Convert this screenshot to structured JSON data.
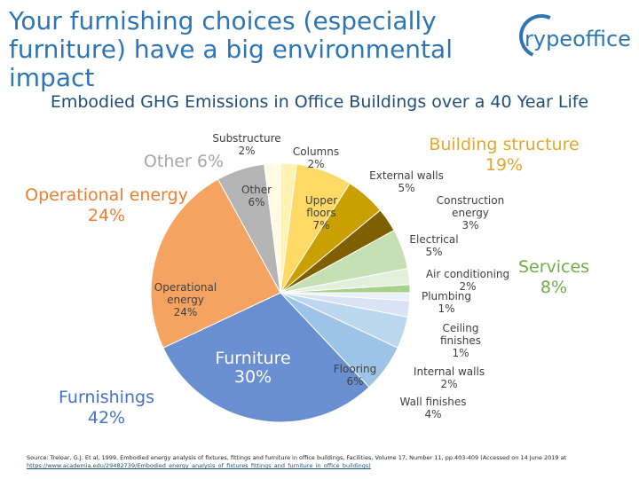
{
  "title": "Your furnishing choices (especially furniture) have a big environmental impact",
  "logo": {
    "rype": "rype",
    "office": "office"
  },
  "source": {
    "text": "Source: Treloar, G.J. Et al, 1999, Embodied energy analysis of fixtures, fittings and furniture in office buildings, Facilities, Volume 17, Number 11, pp.403-409 (Accessed on 14 June 2019 at",
    "link": "https://www.academia.edu/29482739/Embodied_energy_analysis_of_fixtures_fittings_and_furniture_in_office_buildings)"
  },
  "colors": {
    "title": "#2e75b6",
    "group_structure": "#e1a82f",
    "group_services": "#70ad47",
    "group_furnishings": "#4472c4",
    "group_operational": "#ed7d31",
    "group_other": "#a6a6a6"
  },
  "chart_data": {
    "type": "pie",
    "title": "Embodied GHG Emissions in Office Buildings over a 40 Year Life",
    "slices": [
      {
        "label": "Columns",
        "value_label": "2%",
        "value": 2,
        "color": "#fff2b3"
      },
      {
        "label": "Upper floors",
        "value_label": "7%",
        "value": 7,
        "color": "#ffd966"
      },
      {
        "label": "External walls",
        "value_label": "5%",
        "value": 5,
        "color": "#c9a000"
      },
      {
        "label": "Construction energy",
        "value_label": "3%",
        "value": 3,
        "color": "#7f6000"
      },
      {
        "label": "Electrical",
        "value_label": "5%",
        "value": 5,
        "color": "#c5e0b4"
      },
      {
        "label": "Air conditioning",
        "value_label": "2%",
        "value": 2,
        "color": "#e2efda"
      },
      {
        "label": "Plumbing",
        "value_label": "1%",
        "value": 1,
        "color": "#a9d18e"
      },
      {
        "label": "Ceiling finishes",
        "value_label": "1%",
        "value": 1,
        "color": "#e9f1fb"
      },
      {
        "label": "Internal walls",
        "value_label": "2%",
        "value": 2,
        "color": "#dae3f3"
      },
      {
        "label": "Wall finishes",
        "value_label": "4%",
        "value": 4,
        "color": "#bdd7ee"
      },
      {
        "label": "Flooring",
        "value_label": "6%",
        "value": 6,
        "color": "#9dc3e6"
      },
      {
        "label": "Furniture",
        "value_label": "30%",
        "value": 30,
        "color": "#6a8fd1"
      },
      {
        "label": "Operational energy",
        "value_label": "24%",
        "value": 24,
        "color": "#f4a460"
      },
      {
        "label": "Other",
        "value_label": "6%",
        "value": 6,
        "color": "#b4b4b4"
      },
      {
        "label": "Substructure",
        "value_label": "2%",
        "value": 2,
        "color": "#fffbe5"
      }
    ],
    "groups": [
      {
        "label": "Building structure",
        "value_label": "19%"
      },
      {
        "label": "Services",
        "value_label": "8%"
      },
      {
        "label": "Furnishings",
        "value_label": "42%"
      },
      {
        "label": "Operational energy",
        "value_label": "24%"
      },
      {
        "label": "Other",
        "value_label": "6%"
      }
    ],
    "slice_labels": [
      {
        "label": "Substructure",
        "value": "2%"
      },
      {
        "label": "Columns",
        "value": "2%"
      },
      {
        "label": "External walls",
        "value": "5%"
      },
      {
        "label": "Construction energy",
        "value": "3%"
      },
      {
        "label": "Upper floors",
        "value": "7%"
      },
      {
        "label": "Other",
        "value": "6%"
      },
      {
        "label": "Electrical",
        "value": "5%"
      },
      {
        "label": "Air conditioning",
        "value": "2%"
      },
      {
        "label": "Plumbing",
        "value": "1%"
      },
      {
        "label": "Ceiling finishes",
        "value": "1%"
      },
      {
        "label": "Internal walls",
        "value": "2%"
      },
      {
        "label": "Wall finishes",
        "value": "4%"
      },
      {
        "label": "Flooring",
        "value": "6%"
      },
      {
        "label": "Operational energy",
        "value": "24%"
      },
      {
        "label": "Furniture",
        "value": "30%"
      }
    ]
  }
}
